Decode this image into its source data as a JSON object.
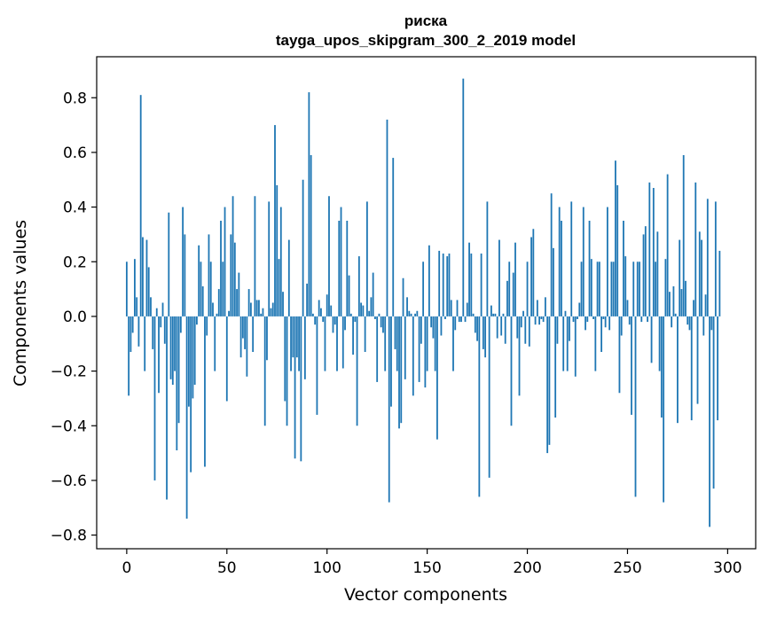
{
  "chart_data": {
    "type": "bar",
    "title_line1": "риска",
    "title_line2": "tayga_upos_skipgram_300_2_2019 model",
    "xlabel": "Vector components",
    "ylabel": "Components values",
    "xlim": [
      -15,
      314
    ],
    "ylim": [
      -0.85,
      0.95
    ],
    "xticks": [
      0,
      50,
      100,
      150,
      200,
      250,
      300
    ],
    "xtick_labels": [
      "0",
      "50",
      "100",
      "150",
      "200",
      "250",
      "300"
    ],
    "yticks": [
      -0.8,
      -0.6,
      -0.4,
      -0.2,
      0.0,
      0.2,
      0.4,
      0.6,
      0.8
    ],
    "ytick_labels": [
      "−0.8",
      "−0.6",
      "−0.4",
      "−0.2",
      "0.0",
      "0.2",
      "0.4",
      "0.6",
      "0.8"
    ],
    "bar_color": "#1f77b4",
    "values": [
      0.2,
      -0.29,
      -0.13,
      -0.06,
      0.21,
      0.07,
      -0.11,
      0.81,
      0.29,
      -0.2,
      0.28,
      0.18,
      0.07,
      -0.12,
      -0.6,
      0.03,
      -0.28,
      -0.04,
      0.05,
      -0.1,
      -0.67,
      0.38,
      -0.23,
      -0.25,
      -0.2,
      -0.49,
      -0.39,
      -0.06,
      0.4,
      0.3,
      -0.74,
      -0.33,
      -0.57,
      -0.3,
      -0.25,
      -0.03,
      0.26,
      0.2,
      0.11,
      -0.55,
      -0.07,
      0.3,
      0.2,
      0.05,
      -0.2,
      0.01,
      0.1,
      0.35,
      0.2,
      0.4,
      -0.31,
      0.02,
      0.3,
      0.44,
      0.27,
      0.1,
      0.16,
      -0.15,
      -0.08,
      -0.12,
      -0.22,
      0.1,
      0.05,
      -0.13,
      0.44,
      0.06,
      0.06,
      0.01,
      0.03,
      -0.4,
      -0.16,
      0.42,
      0.03,
      0.05,
      0.7,
      0.48,
      0.21,
      0.4,
      0.09,
      -0.31,
      -0.4,
      0.28,
      -0.2,
      -0.15,
      -0.52,
      -0.15,
      -0.2,
      -0.53,
      0.5,
      -0.23,
      0.12,
      0.82,
      0.59,
      0.01,
      -0.03,
      -0.36,
      0.06,
      0.03,
      -0.02,
      -0.2,
      0.08,
      0.44,
      0.04,
      -0.06,
      -0.03,
      -0.2,
      0.35,
      0.4,
      -0.19,
      -0.05,
      0.35,
      0.15,
      0.01,
      -0.14,
      -0.02,
      -0.4,
      0.22,
      0.05,
      0.04,
      -0.13,
      0.42,
      0.02,
      0.07,
      0.16,
      -0.01,
      -0.24,
      0.01,
      -0.04,
      -0.06,
      -0.2,
      0.72,
      -0.68,
      -0.33,
      0.58,
      -0.12,
      -0.2,
      -0.41,
      -0.39,
      0.14,
      -0.23,
      0.07,
      0.02,
      0.01,
      -0.29,
      0.01,
      0.02,
      -0.24,
      -0.1,
      0.2,
      -0.26,
      -0.2,
      0.26,
      -0.04,
      -0.08,
      -0.2,
      -0.45,
      0.24,
      -0.07,
      0.23,
      -0.01,
      0.22,
      0.23,
      0.06,
      -0.2,
      -0.05,
      0.06,
      -0.02,
      -0.02,
      0.87,
      -0.02,
      0.05,
      0.27,
      0.23,
      0.01,
      -0.06,
      -0.09,
      -0.66,
      0.23,
      -0.12,
      -0.15,
      0.42,
      -0.59,
      0.04,
      0.01,
      0.01,
      -0.08,
      0.28,
      -0.07,
      0.01,
      -0.1,
      0.13,
      0.2,
      -0.4,
      0.16,
      0.27,
      -0.08,
      -0.29,
      -0.04,
      0.02,
      -0.1,
      0.2,
      -0.11,
      0.29,
      0.32,
      -0.03,
      0.06,
      -0.03,
      -0.01,
      -0.02,
      0.07,
      -0.5,
      -0.47,
      0.45,
      0.25,
      -0.37,
      -0.1,
      0.4,
      0.35,
      -0.2,
      0.02,
      -0.2,
      -0.09,
      0.42,
      -0.02,
      -0.22,
      -0.01,
      0.05,
      0.2,
      0.4,
      -0.05,
      -0.02,
      0.35,
      0.21,
      -0.01,
      -0.2,
      0.2,
      0.2,
      -0.13,
      -0.01,
      -0.04,
      0.4,
      -0.05,
      0.2,
      0.2,
      0.57,
      0.48,
      -0.28,
      -0.07,
      0.35,
      0.22,
      0.06,
      -0.03,
      -0.36,
      0.2,
      -0.66,
      0.2,
      0.2,
      -0.02,
      0.3,
      0.33,
      -0.02,
      0.49,
      -0.17,
      0.47,
      0.2,
      0.31,
      -0.2,
      -0.37,
      -0.68,
      0.21,
      0.52,
      0.09,
      -0.04,
      0.11,
      0.01,
      -0.39,
      0.28,
      0.1,
      0.59,
      0.13,
      -0.03,
      -0.05,
      -0.38,
      0.06,
      0.49,
      -0.32,
      0.31,
      0.28,
      -0.07,
      0.08,
      0.43,
      -0.77,
      -0.05,
      -0.63,
      0.42,
      -0.38,
      0.24
    ]
  }
}
